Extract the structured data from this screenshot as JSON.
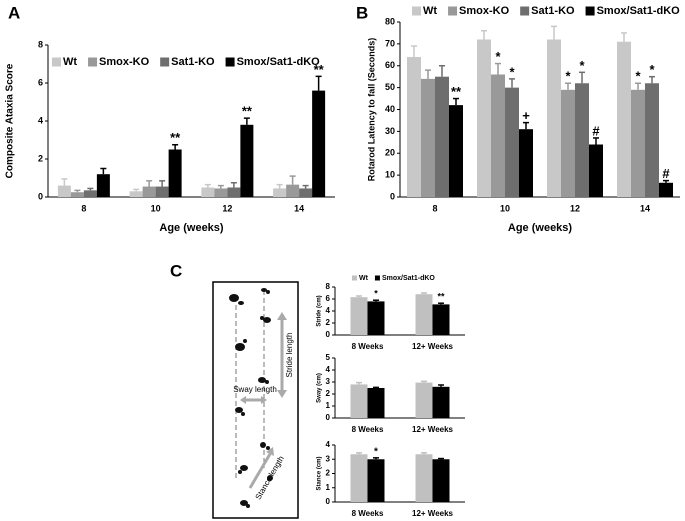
{
  "chart_data": [
    {
      "type": "bar",
      "panel": "A",
      "y_label": "Composite Ataxia Score",
      "x_label": "Age (weeks)",
      "categories": [
        "8",
        "10",
        "12",
        "14"
      ],
      "ylim": [
        0,
        8
      ],
      "yticks": [
        0,
        2,
        4,
        6,
        8
      ],
      "legend": "top",
      "series": [
        {
          "name": "Wt",
          "color": "#c8c8c8",
          "values": [
            0.6,
            0.3,
            0.5,
            0.45
          ],
          "errors": [
            0.35,
            0.1,
            0.15,
            0.2
          ]
        },
        {
          "name": "Smox-KO",
          "color": "#999999",
          "values": [
            0.25,
            0.55,
            0.45,
            0.65
          ],
          "errors": [
            0.1,
            0.3,
            0.15,
            0.45
          ]
        },
        {
          "name": "Sat1-KO",
          "color": "#6e6e6e",
          "values": [
            0.35,
            0.55,
            0.5,
            0.45
          ],
          "errors": [
            0.1,
            0.3,
            0.25,
            0.15
          ]
        },
        {
          "name": "Smox/Sat1-dKO",
          "color": "#000000",
          "values": [
            1.2,
            2.5,
            3.8,
            5.6
          ],
          "errors": [
            0.3,
            0.25,
            0.35,
            0.75
          ]
        }
      ],
      "annotations": [
        {
          "text": "**",
          "category": "10",
          "series": "Smox/Sat1-dKO"
        },
        {
          "text": "**",
          "category": "12",
          "series": "Smox/Sat1-dKO"
        },
        {
          "text": "**",
          "category": "14",
          "series": "Smox/Sat1-dKO"
        }
      ]
    },
    {
      "type": "bar",
      "panel": "B",
      "y_label": "Rotarod Latency to fall (Seconds)",
      "x_label": "Age (weeks)",
      "categories": [
        "8",
        "10",
        "12",
        "14"
      ],
      "ylim": [
        0,
        80
      ],
      "yticks": [
        0,
        10,
        20,
        30,
        40,
        50,
        60,
        70,
        80
      ],
      "legend": "top",
      "series": [
        {
          "name": "Wt",
          "color": "#c8c8c8",
          "values": [
            64,
            72,
            72,
            71
          ],
          "errors": [
            5,
            4,
            6,
            4
          ]
        },
        {
          "name": "Smox-KO",
          "color": "#999999",
          "values": [
            54,
            56,
            49,
            49
          ],
          "errors": [
            4,
            5,
            3,
            3
          ]
        },
        {
          "name": "Sat1-KO",
          "color": "#6e6e6e",
          "values": [
            55,
            50,
            52,
            52
          ],
          "errors": [
            5,
            4,
            5,
            3
          ]
        },
        {
          "name": "Smox/Sat1-dKO",
          "color": "#000000",
          "values": [
            42,
            31,
            24,
            6.5
          ],
          "errors": [
            3,
            3,
            3,
            1
          ]
        }
      ],
      "annotations": [
        {
          "text": "**",
          "category": "8",
          "series": "Smox/Sat1-dKO"
        },
        {
          "text": "*",
          "category": "10",
          "series": "Smox-KO"
        },
        {
          "text": "*",
          "category": "10",
          "series": "Sat1-KO"
        },
        {
          "text": "+",
          "category": "10",
          "series": "Smox/Sat1-dKO"
        },
        {
          "text": "*",
          "category": "12",
          "series": "Smox-KO"
        },
        {
          "text": "*",
          "category": "12",
          "series": "Sat1-KO"
        },
        {
          "text": "#",
          "category": "12",
          "series": "Smox/Sat1-dKO"
        },
        {
          "text": "*",
          "category": "14",
          "series": "Smox-KO"
        },
        {
          "text": "*",
          "category": "14",
          "series": "Sat1-KO"
        },
        {
          "text": "#",
          "category": "14",
          "series": "Smox/Sat1-dKO"
        }
      ]
    },
    {
      "type": "bar",
      "y_label": "Stride (cm)",
      "categories": [
        "8 Weeks",
        "12+ Weeks"
      ],
      "ylim": [
        0,
        8
      ],
      "yticks": [
        0,
        2,
        4,
        6,
        8
      ],
      "legend": "top",
      "series": [
        {
          "name": "Wt",
          "color": "#c0c0c0",
          "values": [
            6.3,
            6.8
          ],
          "errors": [
            0.2,
            0.2
          ]
        },
        {
          "name": "Smox/Sat1-dKO",
          "color": "#000000",
          "values": [
            5.6,
            5.1
          ],
          "errors": [
            0.2,
            0.2
          ]
        }
      ],
      "annotations": [
        {
          "text": "*",
          "category": "8 Weeks",
          "series": "Smox/Sat1-dKO"
        },
        {
          "text": "**",
          "category": "12+ Weeks",
          "series": "Smox/Sat1-dKO"
        }
      ]
    },
    {
      "type": "bar",
      "y_label": "Sway (cm)",
      "categories": [
        "8 Weeks",
        "12+ Weeks"
      ],
      "ylim": [
        0,
        5
      ],
      "yticks": [
        0,
        1,
        2,
        3,
        4,
        5
      ],
      "series": [
        {
          "name": "Wt",
          "color": "#c0c0c0",
          "values": [
            2.8,
            2.95
          ],
          "errors": [
            0.15,
            0.1
          ]
        },
        {
          "name": "Smox/Sat1-dKO",
          "color": "#000000",
          "values": [
            2.5,
            2.6
          ],
          "errors": [
            0.05,
            0.15
          ]
        }
      ]
    },
    {
      "type": "bar",
      "y_label": "Stance (cm)",
      "categories": [
        "8 Weeks",
        "12+ Weeks"
      ],
      "ylim": [
        0,
        4
      ],
      "yticks": [
        0,
        1,
        2,
        3,
        4
      ],
      "series": [
        {
          "name": "Wt",
          "color": "#c0c0c0",
          "values": [
            3.35,
            3.35
          ],
          "errors": [
            0.1,
            0.1
          ]
        },
        {
          "name": "Smox/Sat1-dKO",
          "color": "#000000",
          "values": [
            3.0,
            3.0
          ],
          "errors": [
            0.1,
            0.05
          ]
        }
      ],
      "annotations": [
        {
          "text": "*",
          "category": "8 Weeks",
          "series": "Smox/Sat1-dKO"
        }
      ]
    }
  ],
  "footprint_diagram": {
    "panel": "C",
    "labels": [
      "Stride length",
      "Sway length",
      "Stance length"
    ]
  }
}
